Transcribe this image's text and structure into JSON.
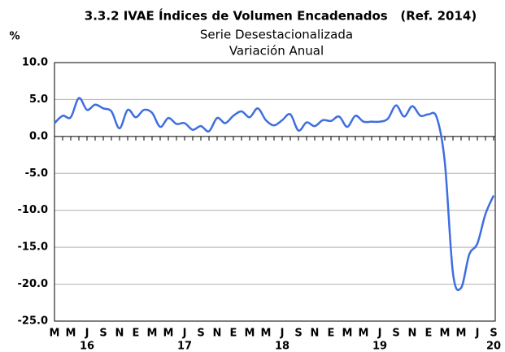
{
  "chart_data": {
    "type": "line",
    "title": "3.3.2 IVAE Índices de Volumen Encadenados   (Ref. 2014)",
    "subtitle": "Serie Desestacionalizada",
    "subtitle2": "Variación Anual",
    "y_label": "%",
    "categories": [
      "M",
      null,
      "M",
      null,
      "J",
      null,
      "S",
      null,
      "N",
      null,
      "E",
      null,
      "M",
      null,
      "M",
      null,
      "J",
      null,
      "S",
      null,
      "N",
      null,
      "E",
      null,
      "M",
      null,
      "M",
      null,
      "J",
      null,
      "S",
      null,
      "N",
      null,
      "E",
      null,
      "M",
      null,
      "M",
      null,
      "J",
      null,
      "S",
      null,
      "N",
      null,
      "E",
      null,
      "M",
      null,
      "M",
      null,
      "J",
      null,
      "S"
    ],
    "year_labels": [
      null,
      null,
      null,
      null,
      "16",
      null,
      null,
      null,
      null,
      null,
      null,
      null,
      null,
      null,
      null,
      null,
      "17",
      null,
      null,
      null,
      null,
      null,
      null,
      null,
      null,
      null,
      null,
      null,
      "18",
      null,
      null,
      null,
      null,
      null,
      null,
      null,
      null,
      null,
      null,
      null,
      "19",
      null,
      null,
      null,
      null,
      null,
      null,
      null,
      null,
      null,
      null,
      null,
      null,
      null,
      "20"
    ],
    "series": [
      {
        "name": "IVAE",
        "color": "#3e6ee0",
        "values": [
          1.8,
          2.8,
          2.6,
          5.2,
          3.6,
          4.3,
          3.8,
          3.4,
          1.1,
          3.6,
          2.6,
          3.6,
          3.2,
          1.3,
          2.5,
          1.7,
          1.8,
          0.9,
          1.4,
          0.7,
          2.5,
          1.8,
          2.8,
          3.4,
          2.6,
          3.8,
          2.2,
          1.5,
          2.2,
          3.0,
          0.8,
          1.9,
          1.4,
          2.2,
          2.1,
          2.7,
          1.3,
          2.8,
          2.0,
          2.0,
          2.0,
          2.4,
          4.2,
          2.7,
          4.1,
          2.8,
          3.0,
          2.6,
          -3.5,
          -18.5,
          -20.5,
          -16,
          -14.5,
          -10.5,
          -8.0
        ]
      }
    ],
    "ylim": [
      -25,
      10
    ],
    "yticks": [
      {
        "value": 10,
        "label": "10.0"
      },
      {
        "value": 5,
        "label": "5.0"
      },
      {
        "value": 0,
        "label": "0.0"
      },
      {
        "value": -5,
        "label": "-5.0"
      },
      {
        "value": -10,
        "label": "-10.0"
      },
      {
        "value": -15,
        "label": "-15.0"
      },
      {
        "value": -20,
        "label": "-20.0"
      },
      {
        "value": -25,
        "label": "-25.0"
      }
    ],
    "grid": true
  }
}
